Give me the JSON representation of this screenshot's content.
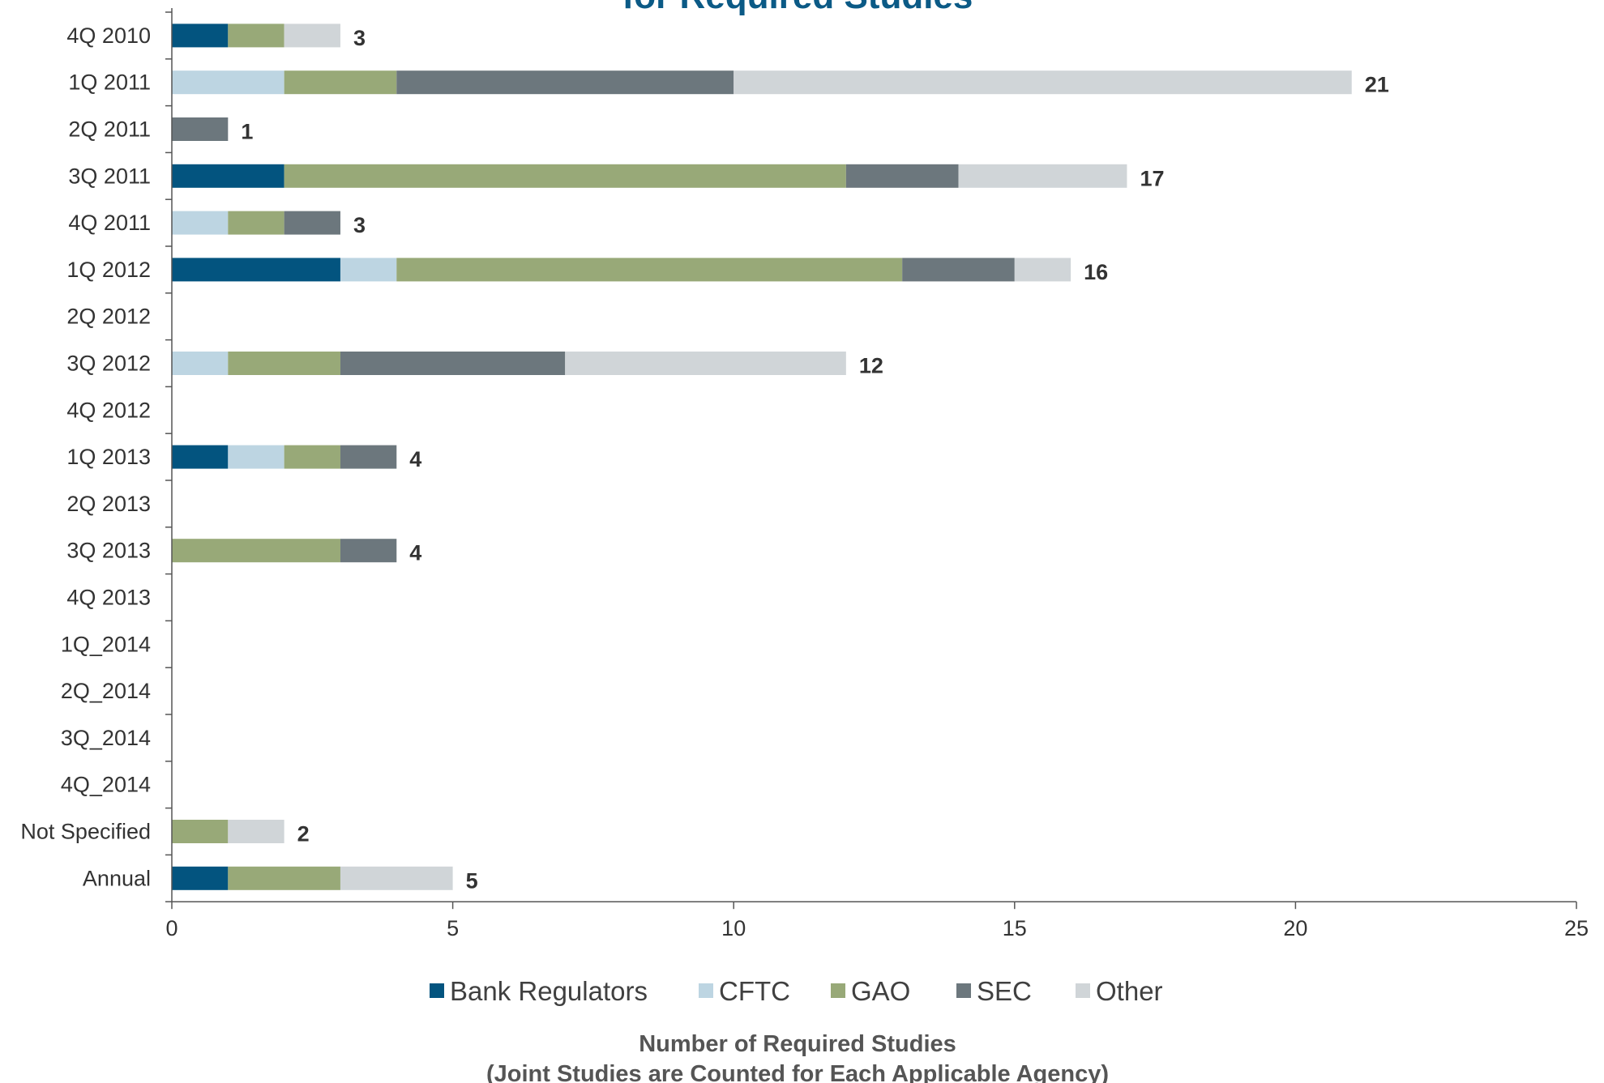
{
  "chart_data": {
    "type": "bar",
    "orientation": "horizontal",
    "stacked": true,
    "title": "for Required Studies",
    "title_color": "#0b5a86",
    "xlabel": "Number of Required Studies",
    "xlabel_sub": "(Joint Studies are Counted for Each Applicable Agency)",
    "xlim": [
      0,
      25
    ],
    "xticks": [
      "0",
      "5",
      "10",
      "15",
      "20",
      "25"
    ],
    "grid": false,
    "legend_position": "bottom",
    "categories": [
      "4Q 2010",
      "1Q 2011",
      "2Q 2011",
      "3Q 2011",
      "4Q 2011",
      "1Q 2012",
      "2Q 2012",
      "3Q 2012",
      "4Q 2012",
      "1Q 2013",
      "2Q 2013",
      "3Q 2013",
      "4Q 2013",
      "1Q_2014",
      "2Q_2014",
      "3Q_2014",
      "4Q_2014",
      "Not Specified",
      "Annual"
    ],
    "series": [
      {
        "name": "Bank Regulators",
        "color": "#03547f",
        "values": [
          1,
          0,
          0,
          2,
          0,
          3,
          0,
          0,
          0,
          1,
          0,
          0,
          0,
          0,
          0,
          0,
          0,
          0,
          1
        ]
      },
      {
        "name": "CFTC",
        "color": "#bdd5e2",
        "values": [
          0,
          2,
          0,
          0,
          1,
          1,
          0,
          1,
          0,
          1,
          0,
          0,
          0,
          0,
          0,
          0,
          0,
          0,
          0
        ]
      },
      {
        "name": "GAO",
        "color": "#98a978",
        "values": [
          1,
          2,
          0,
          10,
          1,
          9,
          0,
          2,
          0,
          1,
          0,
          3,
          0,
          0,
          0,
          0,
          0,
          1,
          2
        ]
      },
      {
        "name": "SEC",
        "color": "#6c777d",
        "values": [
          0,
          6,
          1,
          2,
          1,
          2,
          0,
          4,
          0,
          1,
          0,
          1,
          0,
          0,
          0,
          0,
          0,
          0,
          0
        ]
      },
      {
        "name": "Other",
        "color": "#d0d5d8",
        "values": [
          1,
          11,
          0,
          3,
          0,
          1,
          0,
          5,
          0,
          0,
          0,
          0,
          0,
          0,
          0,
          0,
          0,
          1,
          2
        ]
      }
    ],
    "totals": [
      "3",
      "21",
      "1",
      "17",
      "3",
      "16",
      "",
      "12",
      "",
      "4",
      "",
      "4",
      "",
      "",
      "",
      "",
      "",
      "2",
      "5"
    ]
  }
}
